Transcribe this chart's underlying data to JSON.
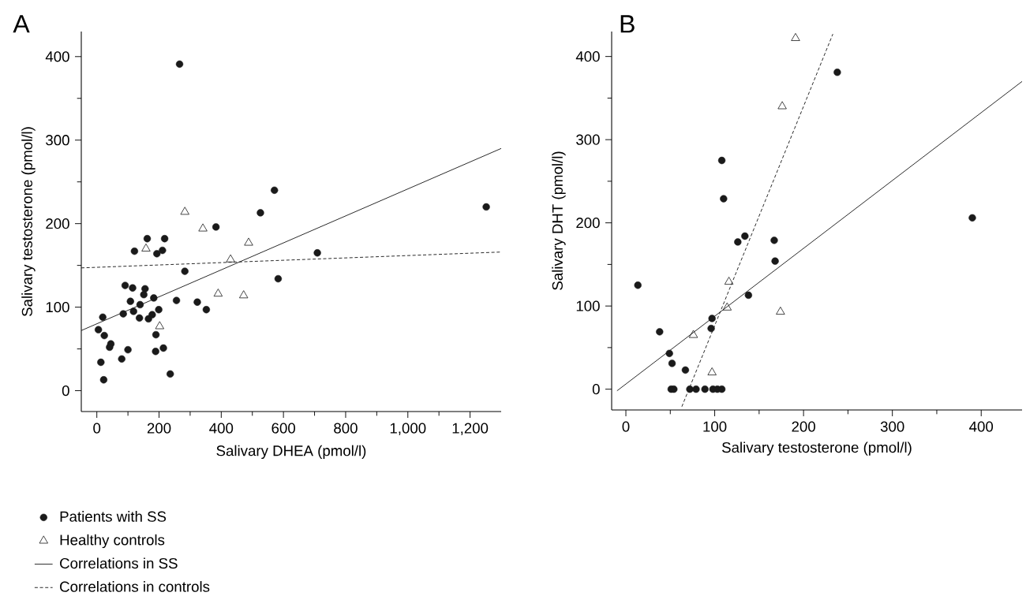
{
  "chart_data": [
    {
      "type": "scatter",
      "title": "A",
      "xlabel": "Salivary DHEA (pmol/l)",
      "ylabel": "Salivary testosterone (pmol/l)",
      "xlim": [
        -50,
        1300
      ],
      "ylim": [
        -25,
        430
      ],
      "xticks": [
        0,
        200,
        400,
        600,
        800,
        {
          "value": 1000,
          "label": "1,000"
        },
        {
          "value": 1200,
          "label": "1,200"
        }
      ],
      "yticks": [
        0,
        100,
        200,
        300,
        400
      ],
      "legend": "bottom",
      "series": [
        {
          "name": "Patients with SS",
          "marker": "circle",
          "color": "#1a1a1a",
          "x": [
            266,
            571,
            526,
            383,
            1252,
            709,
            583,
            283,
            121,
            162,
            218,
            193,
            211,
            256,
            323,
            352,
            91,
            115,
            155,
            151,
            183,
            108,
            139,
            19,
            85,
            118,
            137,
            166,
            178,
            199,
            5,
            24,
            45,
            41,
            100,
            190,
            189,
            214,
            13,
            80,
            22,
            236
          ],
          "values": [
            391,
            240,
            213,
            196,
            220,
            165,
            134,
            143,
            167,
            182,
            182,
            164,
            168,
            108,
            106,
            97,
            126,
            123,
            122,
            115,
            111,
            107,
            103,
            88,
            92,
            95,
            87,
            86,
            91,
            97,
            73,
            66,
            56,
            52,
            49,
            67,
            47,
            51,
            34,
            38,
            13,
            20
          ]
        },
        {
          "name": "Healthy controls",
          "marker": "triangle",
          "color": "#1a1a1a",
          "x": [
            283,
            341,
            158,
            488,
            430,
            390,
            472,
            202
          ],
          "values": [
            214,
            194,
            170,
            177,
            157,
            116,
            114,
            77
          ]
        },
        {
          "name": "Correlations in SS",
          "type": "line",
          "line_style": "solid",
          "color": "#1a1a1a",
          "x": [
            -50,
            1300
          ],
          "values": [
            72,
            290
          ]
        },
        {
          "name": "Correlations in controls",
          "type": "line",
          "line_style": "dashed",
          "color": "#1a1a1a",
          "x": [
            -50,
            1300
          ],
          "values": [
            147,
            166
          ]
        }
      ]
    },
    {
      "type": "scatter",
      "title": "B",
      "xlabel": "Salivary testosterone (pmol/l)",
      "ylabel": "Salivary DHT (pmol/l)",
      "xlim": [
        -16,
        446
      ],
      "ylim": [
        -25,
        430
      ],
      "xticks": [
        0,
        100,
        200,
        300,
        400
      ],
      "yticks": [
        0,
        100,
        200,
        300,
        400
      ],
      "series": [
        {
          "marker": "circle",
          "color": "#1a1a1a",
          "x": [
            13.5,
            38,
            49,
            52,
            67,
            51,
            54,
            72,
            79,
            89,
            98,
            103,
            108,
            97,
            96,
            108,
            110,
            126,
            134,
            167,
            168,
            138,
            238,
            390
          ],
          "values": [
            125,
            69,
            43,
            31,
            23,
            0,
            0,
            0,
            0,
            0,
            0,
            0,
            0,
            85,
            73,
            275,
            229,
            177,
            184,
            179,
            154,
            113,
            381,
            206
          ]
        },
        {
          "marker": "triangle",
          "color": "#1a1a1a",
          "x": [
            176,
            116,
            114,
            76,
            97,
            174,
            191
          ],
          "values": [
            340,
            129,
            98,
            65,
            20,
            93,
            422
          ]
        },
        {
          "type": "line",
          "line_style": "solid",
          "color": "#1a1a1a",
          "x": [
            -10,
            446
          ],
          "values": [
            -2,
            370
          ]
        },
        {
          "type": "line",
          "line_style": "dashed",
          "color": "#1a1a1a",
          "x": [
            63,
            233
          ],
          "values": [
            -21,
            427
          ]
        }
      ]
    }
  ]
}
